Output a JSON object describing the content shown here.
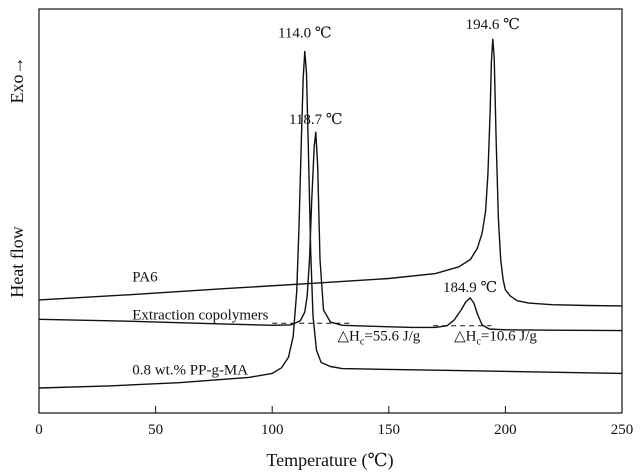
{
  "chart_data": {
    "type": "line",
    "xlabel": "Temperature (℃)",
    "ylabel": "Heat flow",
    "ylabel_direction": "Exo→",
    "xlim": [
      0,
      250
    ],
    "ylim": [
      0,
      10
    ],
    "y_ticks_shown": false,
    "xticks": [
      "0",
      "50",
      "100",
      "150",
      "200",
      "250"
    ],
    "grid": false,
    "series": [
      {
        "name": "PA6",
        "color": "#111111",
        "x": [
          0,
          40,
          80,
          120,
          150,
          170,
          180,
          185,
          188,
          190,
          191.5,
          192.5,
          193.5,
          194,
          194.6,
          195.2,
          196,
          197,
          198,
          199,
          200,
          202,
          205,
          210,
          220,
          235,
          250
        ],
        "y": [
          2.8,
          2.93,
          3.08,
          3.22,
          3.33,
          3.45,
          3.62,
          3.8,
          4.08,
          4.45,
          5.0,
          5.9,
          7.5,
          8.7,
          9.25,
          8.8,
          6.8,
          4.8,
          3.8,
          3.3,
          3.05,
          2.9,
          2.78,
          2.72,
          2.68,
          2.66,
          2.65
        ]
      },
      {
        "name": "Extraction copolymers",
        "color": "#111111",
        "x": [
          0,
          40,
          80,
          100,
          108,
          112,
          114,
          115,
          116,
          117,
          118,
          118.7,
          119.5,
          120.5,
          122,
          125,
          130,
          140,
          160,
          170,
          175,
          178,
          181,
          183,
          184.9,
          186.5,
          188,
          190,
          193,
          200,
          220,
          250
        ],
        "y": [
          2.32,
          2.27,
          2.2,
          2.17,
          2.18,
          2.28,
          2.5,
          2.9,
          3.8,
          5.3,
          6.6,
          6.95,
          6.1,
          3.8,
          2.55,
          2.25,
          2.17,
          2.15,
          2.12,
          2.12,
          2.16,
          2.3,
          2.55,
          2.75,
          2.85,
          2.72,
          2.45,
          2.18,
          2.08,
          2.06,
          2.05,
          2.04
        ]
      },
      {
        "name": "0.8 wt.% PP-g-MA",
        "color": "#111111",
        "x": [
          0,
          30,
          60,
          90,
          100,
          104,
          107,
          109,
          110.5,
          111.5,
          112.5,
          113.3,
          114,
          114.7,
          115.5,
          116.5,
          117.5,
          119,
          121,
          125,
          130,
          150,
          180,
          210,
          250
        ],
        "y": [
          0.62,
          0.67,
          0.75,
          0.88,
          0.98,
          1.12,
          1.38,
          1.9,
          3.0,
          4.6,
          6.8,
          8.3,
          8.95,
          8.4,
          6.6,
          4.0,
          2.4,
          1.55,
          1.25,
          1.15,
          1.1,
          1.08,
          1.05,
          1.02,
          0.98
        ]
      }
    ],
    "baselines": [
      {
        "style": "dashed",
        "x": [
          100,
          134
        ],
        "y": [
          2.22,
          2.22
        ]
      },
      {
        "style": "dashed",
        "x": [
          169,
          194
        ],
        "y": [
          2.16,
          2.16
        ]
      }
    ],
    "annotations": [
      {
        "text": "114.0 ℃",
        "x": 114.0,
        "y": 9.3
      },
      {
        "text": "194.6 ℃",
        "x": 194.6,
        "y": 9.5
      },
      {
        "text": "118.7 ℃",
        "x": 118.7,
        "y": 7.15
      },
      {
        "text": "184.9 ℃",
        "x": 184.9,
        "y": 3.0
      },
      {
        "text": "PA6",
        "x": 40,
        "y": 3.25
      },
      {
        "text": "Extraction copolymers",
        "x": 40,
        "y": 2.32
      },
      {
        "text": "0.8 wt.% PP-g-MA",
        "x": 40,
        "y": 0.95
      },
      {
        "prefix": "△H",
        "sub": "c",
        "suffix": "=55.6 J/g",
        "x": 128,
        "y": 1.8
      },
      {
        "prefix": "△H",
        "sub": "c",
        "suffix": "=10.6 J/g",
        "x": 178,
        "y": 1.8
      }
    ]
  }
}
